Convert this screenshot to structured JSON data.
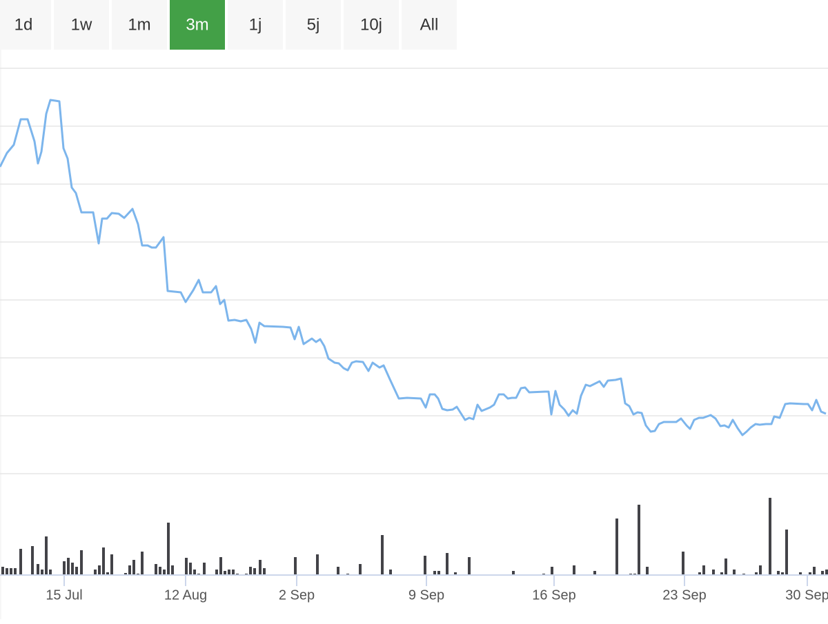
{
  "range_buttons": {
    "labels": [
      "1d",
      "1w",
      "1m",
      "3m",
      "1j",
      "5j",
      "10j",
      "All"
    ],
    "selected": 3
  },
  "chart_data": [
    {
      "type": "line",
      "color": "#7cb5ec",
      "grid": true,
      "xlim": [
        0,
        1200
      ],
      "ylim": [
        0,
        588
      ],
      "x": [
        0,
        10,
        20,
        30,
        40,
        50,
        55,
        60,
        67,
        73,
        80,
        86,
        92,
        98,
        104,
        110,
        118,
        135,
        143,
        148,
        155,
        162,
        172,
        180,
        192,
        200,
        206,
        214,
        220,
        226,
        237,
        243,
        262,
        269,
        280,
        288,
        294,
        306,
        313,
        319,
        325,
        331,
        340,
        349,
        357,
        364,
        370,
        376,
        383,
        410,
        421,
        427,
        433,
        440,
        446,
        452,
        458,
        464,
        470,
        476,
        485,
        491,
        498,
        504,
        510,
        516,
        526,
        534,
        540,
        550,
        556,
        565,
        578,
        590,
        610,
        617,
        623,
        630,
        635,
        641,
        648,
        656,
        662,
        674,
        680,
        686,
        692,
        698,
        710,
        716,
        723,
        730,
        736,
        742,
        748,
        755,
        761,
        767,
        790,
        795,
        799,
        805,
        811,
        818,
        824,
        830,
        836,
        842,
        849,
        855,
        863,
        869,
        875,
        881,
        892,
        900,
        906,
        912,
        918,
        924,
        930,
        936,
        943,
        949,
        955,
        962,
        980,
        987,
        995,
        1000,
        1006,
        1013,
        1019,
        1030,
        1037,
        1044,
        1050,
        1056,
        1062,
        1069,
        1076,
        1082,
        1088,
        1095,
        1101,
        1110,
        1118,
        1122,
        1130,
        1138,
        1145,
        1165,
        1171,
        1177,
        1183,
        1190,
        1197
      ],
      "values": [
        445,
        465,
        477,
        514,
        514,
        482,
        450,
        467,
        522,
        542,
        541,
        540,
        472,
        457,
        415,
        407,
        379,
        379,
        334,
        370,
        370,
        378,
        377,
        371,
        384,
        362,
        331,
        331,
        328,
        328,
        343,
        265,
        263,
        249,
        266,
        281,
        263,
        263,
        272,
        246,
        252,
        222,
        223,
        221,
        223,
        210,
        190,
        219,
        214,
        213,
        212,
        195,
        213,
        188,
        192,
        196,
        191,
        195,
        185,
        167,
        161,
        160,
        153,
        150,
        161,
        163,
        162,
        149,
        161,
        154,
        157,
        137,
        109,
        110,
        109,
        96,
        115,
        115,
        109,
        94,
        92,
        93,
        97,
        78,
        81,
        79,
        100,
        91,
        96,
        100,
        115,
        115,
        109,
        110,
        110,
        124,
        125,
        118,
        119,
        119,
        86,
        120,
        100,
        93,
        84,
        92,
        87,
        113,
        129,
        127,
        131,
        134,
        126,
        135,
        136,
        138,
        102,
        98,
        86,
        89,
        88,
        70,
        61,
        62,
        72,
        75,
        75,
        80,
        70,
        65,
        78,
        81,
        81,
        85,
        80,
        69,
        70,
        67,
        78,
        66,
        56,
        61,
        67,
        72,
        71,
        72,
        72,
        83,
        81,
        101,
        102,
        101,
        101,
        92,
        107,
        90,
        87
      ]
    },
    {
      "type": "bar",
      "color": "#434348",
      "xlim": [
        0,
        1200
      ],
      "ylim": [
        0,
        150
      ],
      "x": [
        4,
        10,
        16,
        22,
        30,
        47,
        55,
        61,
        67,
        73,
        93,
        99,
        105,
        111,
        118,
        138,
        144,
        150,
        156,
        162,
        182,
        188,
        194,
        200,
        206,
        226,
        232,
        238,
        244,
        250,
        270,
        276,
        282,
        288,
        296,
        314,
        320,
        326,
        332,
        338,
        344,
        357,
        363,
        369,
        377,
        383,
        428,
        460,
        490,
        504,
        522,
        554,
        566,
        616,
        630,
        636,
        648,
        660,
        680,
        744,
        788,
        800,
        832,
        862,
        894,
        914,
        920,
        926,
        938,
        990,
        1014,
        1020,
        1034,
        1046,
        1052,
        1064,
        1078,
        1096,
        1102,
        1116,
        1128,
        1134,
        1140,
        1160,
        1174,
        1180,
        1192,
        1198
      ],
      "values": [
        12,
        10,
        10,
        10,
        38,
        42,
        16,
        8,
        56,
        8,
        20,
        25,
        18,
        12,
        36,
        8,
        14,
        40,
        4,
        30,
        3,
        14,
        22,
        2,
        34,
        16,
        12,
        8,
        76,
        14,
        25,
        18,
        8,
        2,
        18,
        8,
        26,
        6,
        8,
        8,
        2,
        2,
        12,
        10,
        22,
        10,
        26,
        30,
        12,
        2,
        16,
        58,
        8,
        28,
        6,
        6,
        32,
        4,
        26,
        6,
        2,
        12,
        14,
        6,
        82,
        2,
        2,
        102,
        12,
        34,
        4,
        14,
        8,
        4,
        24,
        8,
        2,
        4,
        14,
        112,
        6,
        4,
        66,
        4,
        4,
        12,
        6,
        8
      ],
      "xticks": [
        {
          "value": 93,
          "label": "15 Jul"
        },
        {
          "value": 269,
          "label": "12 Aug"
        },
        {
          "value": 430,
          "label": "2 Sep"
        },
        {
          "value": 618,
          "label": "9 Sep"
        },
        {
          "value": 803,
          "label": "16 Sep"
        },
        {
          "value": 992,
          "label": "23 Sep"
        },
        {
          "value": 1170,
          "label": "30 Sep"
        }
      ]
    }
  ]
}
